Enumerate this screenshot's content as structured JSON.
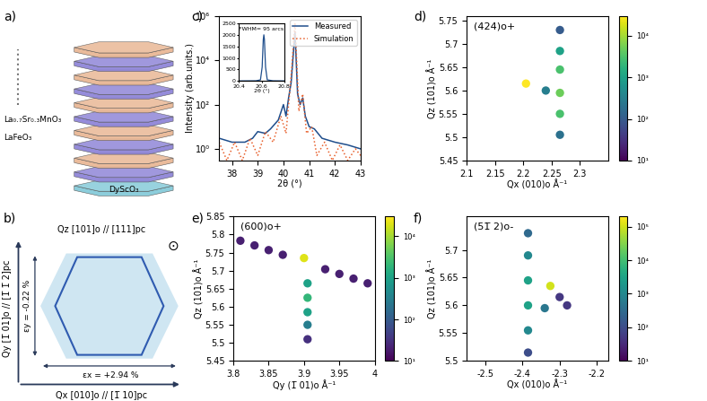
{
  "chart_data": [
    {
      "label": "c)",
      "type": "line",
      "x_label": "2θ (°)",
      "y_label": "Intensity (arb.units.)",
      "xlim": [
        37.5,
        43
      ],
      "xticks": [
        38,
        39,
        40,
        41,
        42,
        43
      ],
      "ylim": [
        0.3,
        1000000
      ],
      "yticks": [
        {
          "value": 1,
          "label": "10⁰"
        },
        {
          "value": 100,
          "label": "10²"
        },
        {
          "value": 10000,
          "label": "10⁴"
        },
        {
          "value": 1000000,
          "label": "10⁶"
        }
      ],
      "log": "y",
      "legend": "upper right",
      "series": [
        {
          "name": "Measured",
          "color": "#1f4e8c",
          "line_style": "solid",
          "x": [
            37.5,
            38,
            38.5,
            38.8,
            39,
            39.3,
            39.5,
            39.8,
            40,
            40.1,
            40.2,
            40.3,
            40.45,
            40.55,
            40.65,
            40.75,
            40.85,
            41,
            41.2,
            41.5,
            42,
            42.5,
            43
          ],
          "values": [
            3,
            2,
            2,
            3,
            6,
            5,
            8,
            20,
            100,
            30,
            200,
            1000,
            200000,
            300,
            100,
            200,
            30,
            10,
            8,
            3,
            2,
            1.5,
            1
          ]
        },
        {
          "name": "Simulation",
          "color": "#e8602c",
          "line_style": "dotted",
          "x": [
            37.5,
            37.8,
            38.1,
            38.4,
            38.7,
            39,
            39.3,
            39.6,
            39.9,
            40.1,
            40.3,
            40.45,
            40.6,
            40.75,
            40.9,
            41.1,
            41.3,
            41.6,
            41.9,
            42.2,
            42.5,
            42.8,
            43
          ],
          "values": [
            2,
            0.3,
            2,
            0.3,
            3,
            0.5,
            6,
            2,
            30,
            5,
            2000,
            500000,
            50,
            300,
            5,
            10,
            0.5,
            2,
            0.3,
            1.5,
            0.3,
            1,
            0.5
          ]
        }
      ],
      "inset": {
        "type": "line",
        "x_label": "2θ (°)",
        "xlim": [
          20.4,
          20.8
        ],
        "xticks": [
          20.4,
          20.6,
          20.8
        ],
        "ylim": [
          0,
          2500
        ],
        "yticks": [
          0,
          500,
          1000,
          1500,
          2000,
          2500
        ],
        "annotation": "FWHM= 95 arcs",
        "series": [
          {
            "color": "#1f4e8c",
            "line_style": "solid",
            "x": [
              20.4,
              20.55,
              20.59,
              20.605,
              20.615,
              20.62,
              20.625,
              20.635,
              20.65,
              20.7,
              20.8
            ],
            "values": [
              5,
              10,
              50,
              600,
              1800,
              2000,
              1800,
              600,
              50,
              10,
              5
            ]
          }
        ]
      }
    },
    {
      "label": "d)",
      "type": "scatter",
      "title": "(424)o+",
      "marker": "o",
      "x_label": "Qx (010)o Å⁻¹",
      "y_label": "Qz (101)o Å⁻¹",
      "xlim": [
        2.1,
        2.35
      ],
      "xticks": [
        2.1,
        2.15,
        2.2,
        2.25,
        2.3
      ],
      "ylim": [
        5.45,
        5.76
      ],
      "yticks": [
        5.45,
        5.5,
        5.55,
        5.6,
        5.65,
        5.7,
        5.75
      ],
      "x": [
        2.265,
        2.265,
        2.265,
        2.265,
        2.265,
        2.265,
        2.24,
        2.205
      ],
      "y": [
        5.73,
        5.505,
        5.685,
        5.55,
        5.645,
        5.595,
        5.6,
        5.615
      ],
      "intensity": [
        100,
        200,
        1000,
        3000,
        3000,
        5000,
        300,
        30000
      ],
      "colorbar_range": [
        10,
        30000
      ],
      "colorbar_ticks": [
        {
          "value": 10,
          "label": "10¹"
        },
        {
          "value": 100,
          "label": "10²"
        },
        {
          "value": 1000,
          "label": "10³"
        },
        {
          "value": 10000,
          "label": "10⁴"
        }
      ]
    },
    {
      "label": "e)",
      "type": "scatter",
      "title": "(600)o+",
      "marker": "o",
      "x_label": "Qy (1̅ 01)o Å⁻¹",
      "y_label": "Qz (101)o Å⁻¹",
      "xlim": [
        3.8,
        4
      ],
      "xticks": [
        3.8,
        3.85,
        3.9,
        3.95,
        4
      ],
      "ylim": [
        5.45,
        5.85
      ],
      "yticks": [
        5.45,
        5.5,
        5.55,
        5.6,
        5.65,
        5.7,
        5.75,
        5.8,
        5.85
      ],
      "x": [
        3.81,
        3.83,
        3.85,
        3.87,
        3.93,
        3.95,
        3.97,
        3.99,
        3.905,
        3.905,
        3.905,
        3.905,
        3.905,
        3.9
      ],
      "y": [
        5.783,
        5.77,
        5.757,
        5.744,
        5.704,
        5.691,
        5.678,
        5.665,
        5.51,
        5.55,
        5.585,
        5.625,
        5.665,
        5.735
      ],
      "intensity": [
        20,
        20,
        20,
        20,
        20,
        20,
        20,
        20,
        30,
        300,
        1000,
        2000,
        1000,
        20000
      ],
      "colorbar_range": [
        10,
        30000
      ],
      "colorbar_ticks": [
        {
          "value": 10,
          "label": "10¹"
        },
        {
          "value": 100,
          "label": "10²"
        },
        {
          "value": 1000,
          "label": "10³"
        },
        {
          "value": 10000,
          "label": "10⁴"
        }
      ]
    },
    {
      "label": "f)",
      "type": "scatter",
      "title": "(51̅ 2)o-",
      "marker": "o",
      "x_label": "Qx (010)o Å⁻¹",
      "y_label": "Qz (101)o Å⁻¹",
      "xlim": [
        -2.55,
        -2.17
      ],
      "xticks": [
        -2.5,
        -2.4,
        -2.3,
        -2.2
      ],
      "ylim": [
        5.5,
        5.76
      ],
      "yticks": [
        5.5,
        5.55,
        5.6,
        5.65,
        5.7
      ],
      "x": [
        -2.3,
        -2.28,
        -2.385,
        -2.385,
        -2.385,
        -2.385,
        -2.385,
        -2.385,
        -2.34,
        -2.325
      ],
      "y": [
        5.615,
        5.6,
        5.73,
        5.515,
        5.69,
        5.555,
        5.6,
        5.645,
        5.595,
        5.635
      ],
      "intensity": [
        50,
        50,
        300,
        100,
        1000,
        1000,
        3000,
        3000,
        500,
        100000
      ],
      "colorbar_range": [
        10,
        200000
      ],
      "colorbar_ticks": [
        {
          "value": 10,
          "label": "10¹"
        },
        {
          "value": 100,
          "label": "10²"
        },
        {
          "value": 1000,
          "label": "10³"
        },
        {
          "value": 10000,
          "label": "10⁴"
        },
        {
          "value": 100000,
          "label": "10⁵"
        }
      ]
    }
  ],
  "schematic_a": {
    "label": "a)",
    "layers": [
      "La₀.₇Sr₀.₃MnO₃",
      "LaFeO₃"
    ],
    "substrate": "DyScO₃"
  },
  "schematic_b": {
    "label": "b)",
    "z_axis": "Qz [101]o // [111]pc",
    "y_axis": "Qy [1̅ 01]o // [1̅ 1̅ 2]pc",
    "x_axis": "Qx [010]o // [1̅ 10]pc",
    "strain_y": "εy = -0.22 %",
    "strain_x": "εx = +2.94 %",
    "out_of_plane_symbol": "⊙"
  }
}
